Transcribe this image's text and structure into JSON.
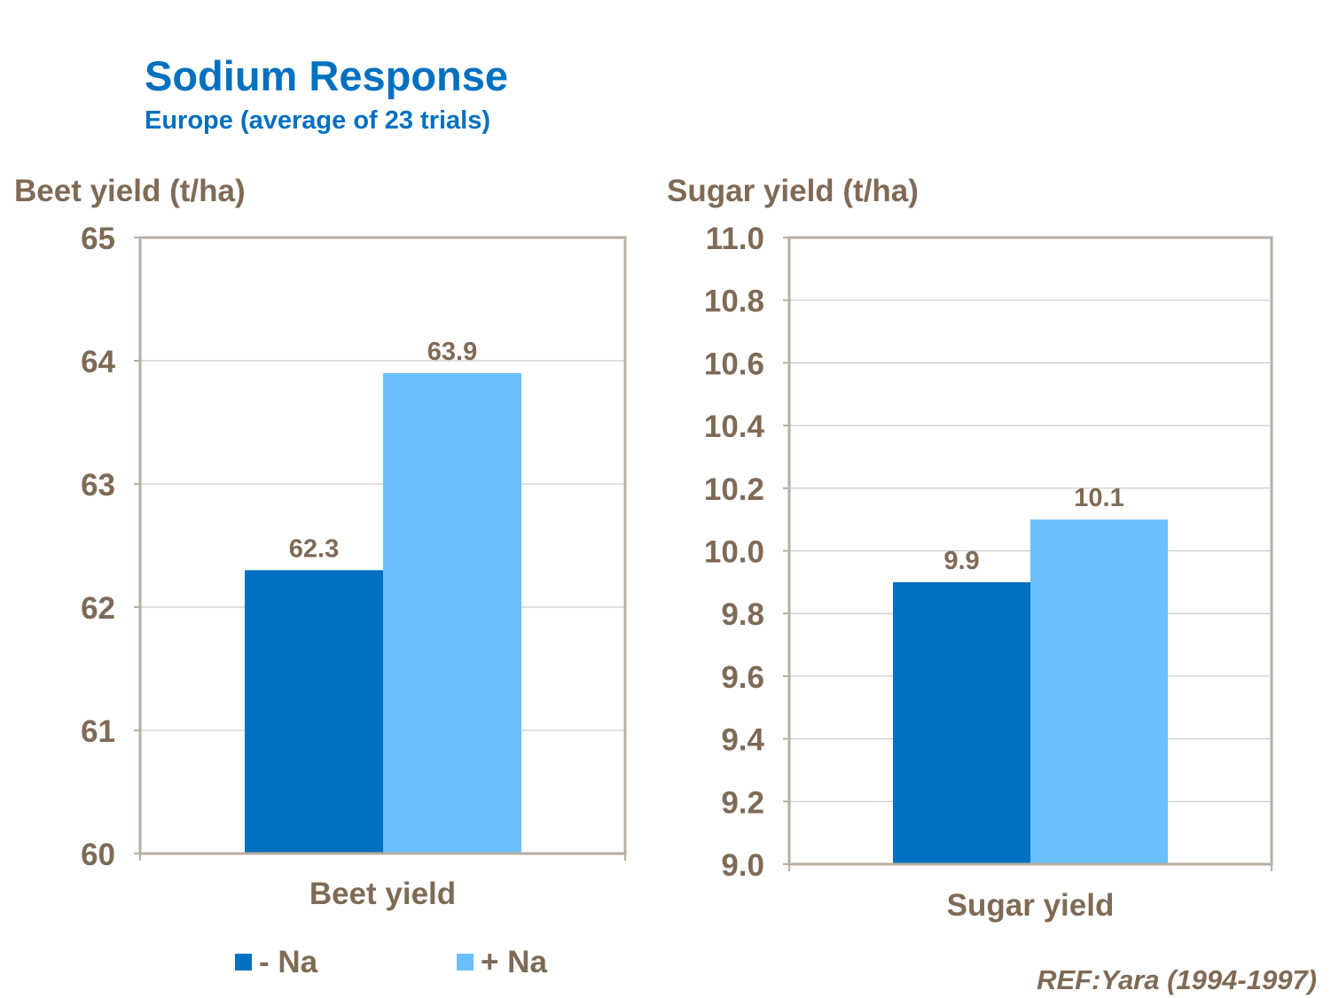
{
  "header": {
    "title": "Sodium Response",
    "subtitle": "Europe (average of 23 trials)"
  },
  "reference": "REF:Yara (1994-1997)",
  "legend": [
    {
      "label": "- Na",
      "color": "#0070C0"
    },
    {
      "label": "+ Na",
      "color": "#6BBFFF"
    }
  ],
  "colors": {
    "title": "#0070C0",
    "text": "#7F6A56",
    "frame": "#B8AEA2",
    "grid": "#BFBFBF"
  },
  "chart_data": [
    {
      "type": "bar",
      "ylabel": "Beet yield (t/ha)",
      "categories": [
        "Beet yield"
      ],
      "ylim": [
        60,
        65
      ],
      "yticks": [
        60,
        61,
        62,
        63,
        64,
        65
      ],
      "ytick_labels": [
        "60",
        "61",
        "62",
        "63",
        "64",
        "65"
      ],
      "grid": true,
      "series": [
        {
          "name": "- Na",
          "values": [
            62.3
          ],
          "labels": [
            "62.3"
          ]
        },
        {
          "name": "+ Na",
          "values": [
            63.9
          ],
          "labels": [
            "63.9"
          ]
        }
      ]
    },
    {
      "type": "bar",
      "ylabel": "Sugar yield (t/ha)",
      "categories": [
        "Sugar yield"
      ],
      "ylim": [
        9.0,
        11.0
      ],
      "yticks": [
        9.0,
        9.2,
        9.4,
        9.6,
        9.8,
        10.0,
        10.2,
        10.4,
        10.6,
        10.8,
        11.0
      ],
      "ytick_labels": [
        "9.0",
        "9.2",
        "9.4",
        "9.6",
        "9.8",
        "10.0",
        "10.2",
        "10.4",
        "10.6",
        "10.8",
        "11.0"
      ],
      "grid": true,
      "series": [
        {
          "name": "- Na",
          "values": [
            9.9
          ],
          "labels": [
            "9.9"
          ]
        },
        {
          "name": "+ Na",
          "values": [
            10.1
          ],
          "labels": [
            "10.1"
          ]
        }
      ]
    }
  ]
}
